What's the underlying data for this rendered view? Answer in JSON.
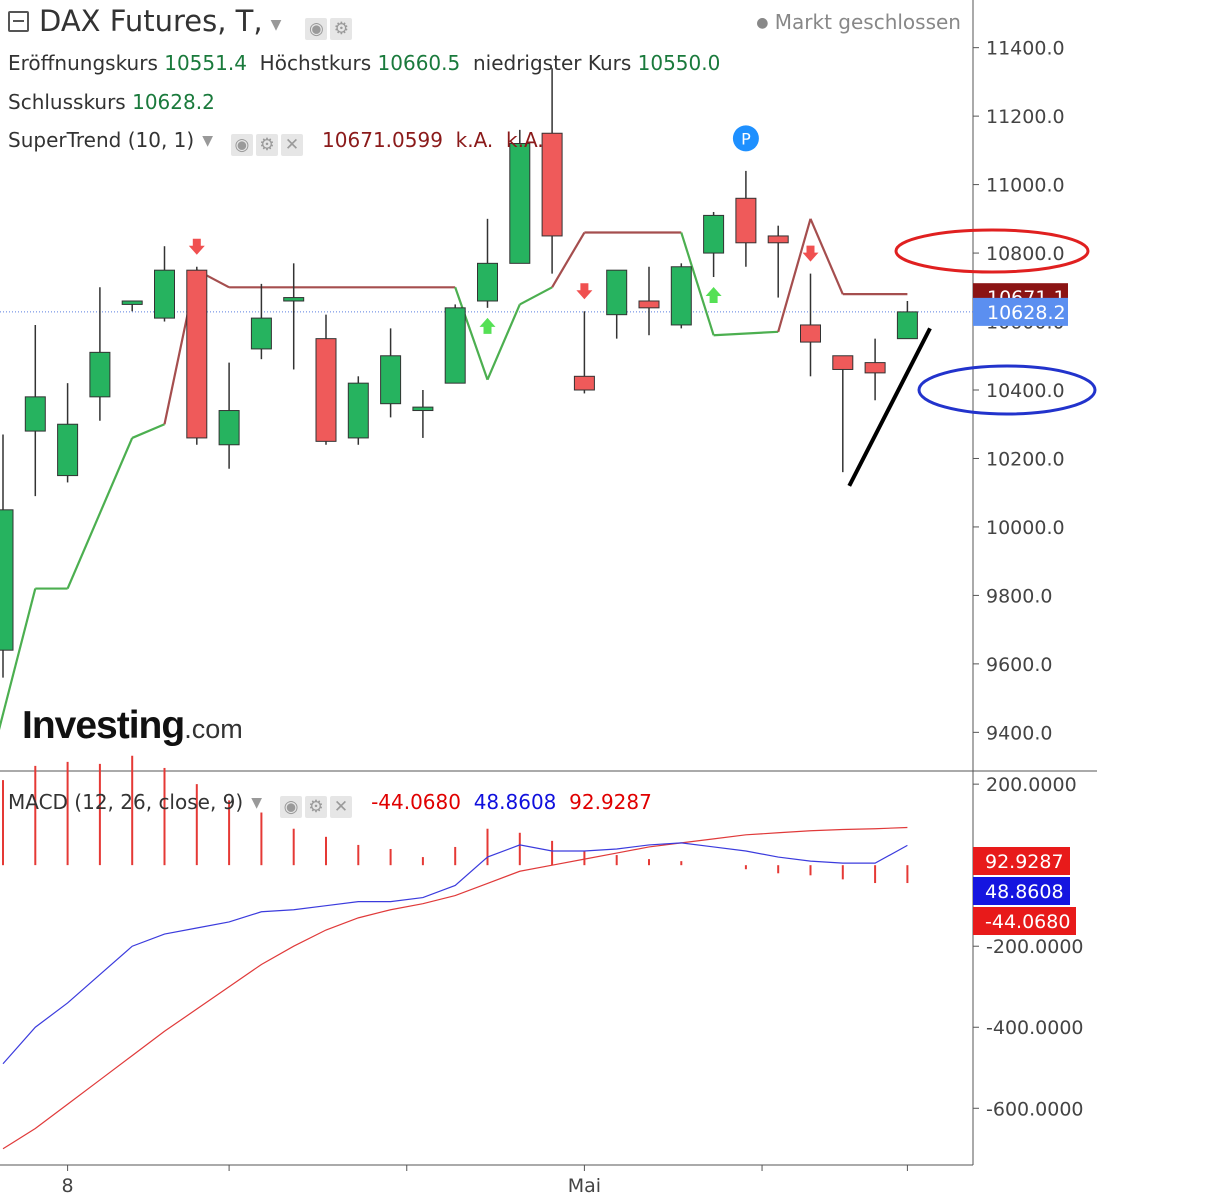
{
  "header": {
    "symbol_title": "DAX Futures, T,",
    "market_status": "Markt geschlossen",
    "open_label": "Eröffnungskurs",
    "open_value": "10551.4",
    "high_label": "Höchstkurs",
    "high_value": "10660.5",
    "low_label": "niedrigster Kurs",
    "low_value": "10550.0",
    "close_label": "Schlusskurs",
    "close_value": "10628.2"
  },
  "supertrend_legend": {
    "name": "SuperTrend (10, 1)",
    "value": "10671.0599",
    "na1": "k.A.",
    "na2": "k.A."
  },
  "macd_legend": {
    "name": "MACD (12, 26, close, 9)",
    "histogram": "-44.0680",
    "macd": "48.8608",
    "signal": "92.9287"
  },
  "watermark": {
    "brand": "Investing",
    "suffix": ".com"
  },
  "colors": {
    "up": "#26b35f",
    "down": "#ef5a5a",
    "st_up": "#4caf50",
    "st_down": "#a54e4e",
    "last_price_bg": "#8b1414",
    "close_price_bg": "#5b8ff0",
    "macd_line": "#3b3bdd",
    "signal_line": "#e03a3a",
    "hist": "#e53935",
    "annot_red": "#e02020",
    "annot_blue": "#2233cc",
    "annot_line": "#000000"
  },
  "chart_data": [
    {
      "type": "candlestick",
      "title": "DAX Futures, T,",
      "y_ticks": [
        "11400.0",
        "11200.0",
        "11000.0",
        "10800.0",
        "10600.0",
        "10400.0",
        "10200.0",
        "10000.0",
        "9800.0",
        "9600.0",
        "9400.0"
      ],
      "ylim": [
        9290,
        11510
      ],
      "x_ticks": [
        {
          "index": 2,
          "label": "8"
        },
        {
          "index": 18,
          "label": "Mai"
        }
      ],
      "price_tags": [
        {
          "value": 10671.1,
          "label": "10671.1",
          "role": "last"
        },
        {
          "value": 10628.2,
          "label": "10628.2",
          "role": "close"
        }
      ],
      "candles": [
        {
          "o": 9640,
          "h": 10270,
          "l": 9560,
          "c": 10050
        },
        {
          "o": 10280,
          "h": 10590,
          "l": 10090,
          "c": 10380
        },
        {
          "o": 10150,
          "h": 10420,
          "l": 10130,
          "c": 10300
        },
        {
          "o": 10380,
          "h": 10700,
          "l": 10310,
          "c": 10510
        },
        {
          "o": 10650,
          "h": 10660,
          "l": 10630,
          "c": 10660
        },
        {
          "o": 10610,
          "h": 10820,
          "l": 10600,
          "c": 10750
        },
        {
          "o": 10750,
          "h": 10760,
          "l": 10240,
          "c": 10260
        },
        {
          "o": 10240,
          "h": 10480,
          "l": 10170,
          "c": 10340
        },
        {
          "o": 10520,
          "h": 10710,
          "l": 10490,
          "c": 10610
        },
        {
          "o": 10660,
          "h": 10770,
          "l": 10460,
          "c": 10670
        },
        {
          "o": 10550,
          "h": 10620,
          "l": 10240,
          "c": 10250
        },
        {
          "o": 10260,
          "h": 10440,
          "l": 10240,
          "c": 10420
        },
        {
          "o": 10360,
          "h": 10580,
          "l": 10320,
          "c": 10500
        },
        {
          "o": 10340,
          "h": 10400,
          "l": 10260,
          "c": 10350
        },
        {
          "o": 10420,
          "h": 10650,
          "l": 10420,
          "c": 10640
        },
        {
          "o": 10660,
          "h": 10900,
          "l": 10640,
          "c": 10770
        },
        {
          "o": 10770,
          "h": 11160,
          "l": 10770,
          "c": 11120
        },
        {
          "o": 11150,
          "h": 11340,
          "l": 10740,
          "c": 10850
        },
        {
          "o": 10440,
          "h": 10630,
          "l": 10390,
          "c": 10400
        },
        {
          "o": 10620,
          "h": 10750,
          "l": 10550,
          "c": 10750
        },
        {
          "o": 10660,
          "h": 10760,
          "l": 10560,
          "c": 10640
        },
        {
          "o": 10590,
          "h": 10770,
          "l": 10580,
          "c": 10760
        },
        {
          "o": 10800,
          "h": 10920,
          "l": 10730,
          "c": 10910
        },
        {
          "o": 10960,
          "h": 11040,
          "l": 10760,
          "c": 10830
        },
        {
          "o": 10850,
          "h": 10880,
          "l": 10670,
          "c": 10830
        },
        {
          "o": 10590,
          "h": 10740,
          "l": 10440,
          "c": 10540
        },
        {
          "o": 10500,
          "h": 10500,
          "l": 10160,
          "c": 10460
        },
        {
          "o": 10480,
          "h": 10550,
          "l": 10370,
          "c": 10450
        },
        {
          "o": 10550,
          "h": 10660,
          "l": 10550,
          "c": 10628.2
        }
      ],
      "supertrend": {
        "name": "SuperTrend (10, 1)",
        "points": [
          {
            "i": -0.2,
            "v": 9380,
            "dir": "up"
          },
          {
            "i": 1,
            "v": 9820,
            "dir": "up"
          },
          {
            "i": 2,
            "v": 9820,
            "dir": "up"
          },
          {
            "i": 4,
            "v": 10260,
            "dir": "up"
          },
          {
            "i": 5,
            "v": 10300,
            "dir": "up"
          },
          {
            "i": 6,
            "v": 10750,
            "dir": "down"
          },
          {
            "i": 7,
            "v": 10700,
            "dir": "down"
          },
          {
            "i": 14,
            "v": 10700,
            "dir": "down"
          },
          {
            "i": 15,
            "v": 10430,
            "dir": "up"
          },
          {
            "i": 16,
            "v": 10650,
            "dir": "up"
          },
          {
            "i": 17,
            "v": 10700,
            "dir": "up"
          },
          {
            "i": 18,
            "v": 10860,
            "dir": "down"
          },
          {
            "i": 21,
            "v": 10860,
            "dir": "down"
          },
          {
            "i": 22,
            "v": 10560,
            "dir": "up"
          },
          {
            "i": 24,
            "v": 10570,
            "dir": "up"
          },
          {
            "i": 25,
            "v": 10900,
            "dir": "down"
          },
          {
            "i": 26,
            "v": 10680,
            "dir": "down"
          },
          {
            "i": 28,
            "v": 10680,
            "dir": "down"
          }
        ],
        "signals": [
          {
            "i": 6,
            "dir": "down"
          },
          {
            "i": 15,
            "dir": "up"
          },
          {
            "i": 18,
            "dir": "down"
          },
          {
            "i": 22,
            "dir": "up"
          },
          {
            "i": 25,
            "dir": "down"
          }
        ],
        "pivot_marker": {
          "i": 23,
          "v": 11135,
          "label": "P"
        }
      },
      "annotations": {
        "red_ellipse_label": "10800.0",
        "blue_ellipse_label": "10400.0",
        "trendline": [
          {
            "i": 26.2,
            "v": 10120
          },
          {
            "i": 28.7,
            "v": 10580
          }
        ]
      }
    },
    {
      "type": "macd",
      "title": "MACD (12, 26, close, 9)",
      "y_ticks": [
        "200.0000",
        "-200.0000",
        "-400.0000",
        "-600.0000"
      ],
      "ylim": [
        -740,
        230
      ],
      "value_tags": [
        {
          "value": 92.9287,
          "label": "92.9287",
          "role": "signal"
        },
        {
          "value": 48.8608,
          "label": "48.8608",
          "role": "macd"
        },
        {
          "value": -44.068,
          "label": "-44.0680",
          "role": "histogram"
        }
      ],
      "macd": [
        -490,
        -400,
        -340,
        -270,
        -200,
        -170,
        -155,
        -140,
        -115,
        -110,
        -100,
        -90,
        -90,
        -80,
        -50,
        20,
        50,
        35,
        35,
        40,
        50,
        55,
        45,
        35,
        20,
        10,
        5,
        5,
        48.86
      ],
      "signal": [
        -700,
        -650,
        -590,
        -530,
        -470,
        -410,
        -355,
        -300,
        -245,
        -200,
        -160,
        -130,
        -110,
        -95,
        -75,
        -45,
        -15,
        0,
        15,
        30,
        45,
        55,
        65,
        75,
        80,
        85,
        88,
        90,
        92.93
      ],
      "histogram": [
        210,
        245,
        255,
        250,
        270,
        240,
        200,
        160,
        130,
        90,
        70,
        50,
        40,
        20,
        45,
        90,
        80,
        60,
        35,
        25,
        15,
        10,
        0,
        -10,
        -20,
        -25,
        -35,
        -44.07,
        -44.07
      ]
    }
  ]
}
